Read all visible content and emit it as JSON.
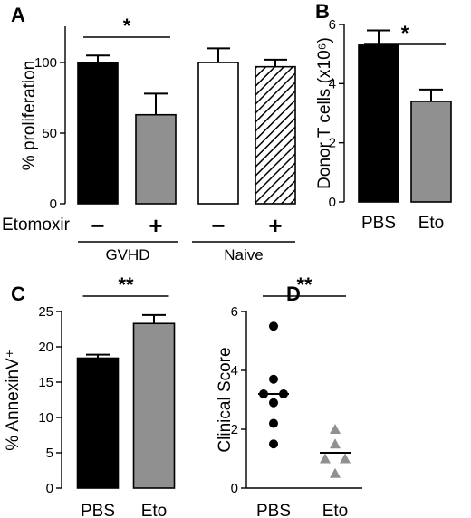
{
  "chart_data": [
    {
      "panel": "A",
      "type": "bar",
      "ylabel": "% proliferation",
      "ylim": [
        0,
        125
      ],
      "yticks": [
        0,
        50,
        100
      ],
      "row_label": "Etomoxir",
      "categories": [
        "−",
        "+",
        "−",
        "+"
      ],
      "groups": [
        {
          "label": "GVHD",
          "span": [
            0,
            1
          ]
        },
        {
          "label": "Naive",
          "span": [
            2,
            3
          ]
        }
      ],
      "values": [
        100,
        63,
        100,
        97
      ],
      "errors": [
        5,
        15,
        10,
        5
      ],
      "fills": [
        "#000000",
        "#909090",
        "#ffffff",
        "hatch"
      ],
      "significance": [
        {
          "from": 0,
          "to": 1,
          "label": "*"
        }
      ]
    },
    {
      "panel": "B",
      "type": "bar",
      "ylabel": "Donor T cells (x10⁶)",
      "ylim": [
        0,
        6
      ],
      "yticks": [
        0,
        2,
        4,
        6
      ],
      "categories": [
        "PBS",
        "Eto"
      ],
      "values": [
        5.3,
        3.4
      ],
      "errors": [
        0.5,
        0.4
      ],
      "fills": [
        "#000000",
        "#909090"
      ],
      "significance": [
        {
          "from": 0,
          "to": 1,
          "label": "*"
        }
      ]
    },
    {
      "panel": "C",
      "type": "bar",
      "ylabel": "% AnnexinV⁺",
      "ylim": [
        0,
        25
      ],
      "yticks": [
        0,
        5,
        10,
        15,
        20,
        25
      ],
      "categories": [
        "PBS",
        "Eto"
      ],
      "values": [
        18.4,
        23.3
      ],
      "errors": [
        0.5,
        1.2
      ],
      "fills": [
        "#000000",
        "#909090"
      ],
      "significance": [
        {
          "from": 0,
          "to": 1,
          "label": "**"
        }
      ]
    },
    {
      "panel": "D",
      "type": "scatter",
      "ylabel": "Clinical Score",
      "ylim": [
        0,
        6
      ],
      "yticks": [
        0,
        2,
        4,
        6
      ],
      "categories": [
        "PBS",
        "Eto"
      ],
      "points": [
        {
          "category": 0,
          "y": 5.5,
          "dx": 0
        },
        {
          "category": 0,
          "y": 3.7,
          "dx": 0
        },
        {
          "category": 0,
          "y": 3.2,
          "dx": -1
        },
        {
          "category": 0,
          "y": 3.2,
          "dx": 1
        },
        {
          "category": 0,
          "y": 2.9,
          "dx": 0
        },
        {
          "category": 0,
          "y": 2.2,
          "dx": 0
        },
        {
          "category": 0,
          "y": 1.5,
          "dx": 0
        },
        {
          "category": 1,
          "y": 2.0,
          "dx": 0
        },
        {
          "category": 1,
          "y": 1.5,
          "dx": 0
        },
        {
          "category": 1,
          "y": 1.0,
          "dx": -1
        },
        {
          "category": 1,
          "y": 1.0,
          "dx": 1
        },
        {
          "category": 1,
          "y": 0.5,
          "dx": 0
        }
      ],
      "means": [
        3.2,
        1.2
      ],
      "markers": [
        "circle",
        "triangle"
      ],
      "marker_colors": [
        "#000000",
        "#909090"
      ],
      "significance": [
        {
          "from": 0,
          "to": 1,
          "label": "**"
        }
      ]
    }
  ]
}
